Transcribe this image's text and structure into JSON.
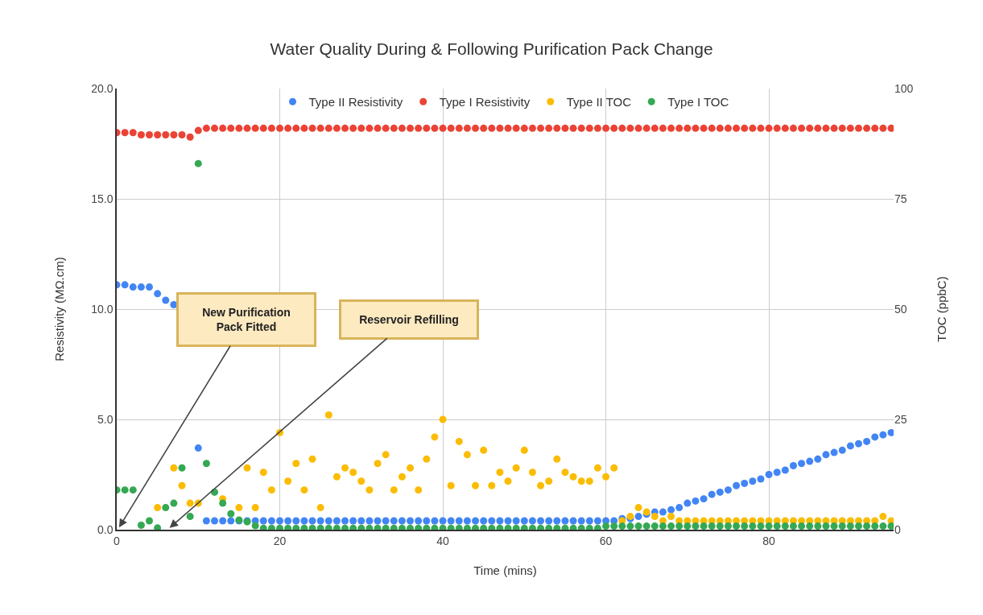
{
  "chart_data": {
    "type": "scatter",
    "title": "Water Quality During & Following Purification Pack Change",
    "xlabel": "Time (mins)",
    "ylabel": "Resistivity (MΩ.cm)",
    "y2label": "TOC (ppbC)",
    "x": [
      0,
      1,
      2,
      3,
      4,
      5,
      6,
      7,
      8,
      9,
      10,
      11,
      12,
      13,
      14,
      15,
      16,
      17,
      18,
      19,
      20,
      21,
      22,
      23,
      24,
      25,
      26,
      27,
      28,
      29,
      30,
      31,
      32,
      33,
      34,
      35,
      36,
      37,
      38,
      39,
      40,
      41,
      42,
      43,
      44,
      45,
      46,
      47,
      48,
      49,
      50,
      51,
      52,
      53,
      54,
      55,
      56,
      57,
      58,
      59,
      60,
      61,
      62,
      63,
      64,
      65,
      66,
      67,
      68,
      69,
      70,
      71,
      72,
      73,
      74,
      75,
      76,
      77,
      78,
      79,
      80,
      81,
      82,
      83,
      84,
      85,
      86,
      87,
      88,
      89,
      90,
      91,
      92,
      93,
      94,
      95
    ],
    "series": [
      {
        "name": "Type II Resistivity",
        "color": "#4285f4",
        "values": [
          11.1,
          11.1,
          11.0,
          11.0,
          11.0,
          10.7,
          10.4,
          10.2,
          null,
          null,
          3.7,
          0.4,
          0.4,
          0.4,
          0.4,
          0.4,
          0.4,
          0.4,
          0.4,
          0.4,
          0.4,
          0.4,
          0.4,
          0.4,
          0.4,
          0.4,
          0.4,
          0.4,
          0.4,
          0.4,
          0.4,
          0.4,
          0.4,
          0.4,
          0.4,
          0.4,
          0.4,
          0.4,
          0.4,
          0.4,
          0.4,
          0.4,
          0.4,
          0.4,
          0.4,
          0.4,
          0.4,
          0.4,
          0.4,
          0.4,
          0.4,
          0.4,
          0.4,
          0.4,
          0.4,
          0.4,
          0.4,
          0.4,
          0.4,
          0.4,
          0.4,
          0.4,
          0.5,
          0.5,
          0.6,
          0.7,
          0.8,
          0.8,
          0.9,
          1.0,
          1.2,
          1.3,
          1.4,
          1.6,
          1.7,
          1.8,
          2.0,
          2.1,
          2.2,
          2.3,
          2.5,
          2.6,
          2.7,
          2.9,
          3.0,
          3.1,
          3.2,
          3.4,
          3.5,
          3.6,
          3.8,
          3.9,
          4.0,
          4.2,
          4.3,
          4.4
        ]
      },
      {
        "name": "Type I Resistivity",
        "color": "#ea4335",
        "values": [
          18.0,
          18.0,
          18.0,
          17.9,
          17.9,
          17.9,
          17.9,
          17.9,
          17.9,
          17.8,
          18.1,
          18.2,
          18.2,
          18.2,
          18.2,
          18.2,
          18.2,
          18.2,
          18.2,
          18.2,
          18.2,
          18.2,
          18.2,
          18.2,
          18.2,
          18.2,
          18.2,
          18.2,
          18.2,
          18.2,
          18.2,
          18.2,
          18.2,
          18.2,
          18.2,
          18.2,
          18.2,
          18.2,
          18.2,
          18.2,
          18.2,
          18.2,
          18.2,
          18.2,
          18.2,
          18.2,
          18.2,
          18.2,
          18.2,
          18.2,
          18.2,
          18.2,
          18.2,
          18.2,
          18.2,
          18.2,
          18.2,
          18.2,
          18.2,
          18.2,
          18.2,
          18.2,
          18.2,
          18.2,
          18.2,
          18.2,
          18.2,
          18.2,
          18.2,
          18.2,
          18.2,
          18.2,
          18.2,
          18.2,
          18.2,
          18.2,
          18.2,
          18.2,
          18.2,
          18.2,
          18.2,
          18.2,
          18.2,
          18.2,
          18.2,
          18.2,
          18.2,
          18.2,
          18.2,
          18.2,
          18.2,
          18.2,
          18.2,
          18.2,
          18.2,
          18.2
        ]
      },
      {
        "name": "Type II TOC",
        "color": "#fbbc04",
        "axis": "y2",
        "values": [
          null,
          null,
          null,
          null,
          null,
          5,
          null,
          14,
          10,
          6,
          6,
          null,
          null,
          7,
          null,
          5,
          14,
          5,
          13,
          9,
          22,
          11,
          15,
          9,
          16,
          5,
          26,
          12,
          14,
          13,
          11,
          9,
          15,
          17,
          9,
          12,
          14,
          9,
          16,
          21,
          25,
          10,
          20,
          17,
          10,
          18,
          10,
          13,
          11,
          14,
          18,
          13,
          10,
          11,
          16,
          13,
          12,
          11,
          11,
          14,
          12,
          14,
          2,
          3,
          5,
          4,
          3,
          2,
          3,
          2,
          2,
          2,
          2,
          2,
          2,
          2,
          2,
          2,
          2,
          2,
          2,
          2,
          2,
          2,
          2,
          2,
          2,
          2,
          2,
          2,
          2,
          2,
          2,
          2,
          3,
          2
        ]
      },
      {
        "name": "Type I TOC",
        "color": "#34a853",
        "axis": "y2",
        "values": [
          9,
          9,
          9,
          1,
          2,
          0.4,
          5,
          6,
          14,
          3,
          83,
          15,
          8.5,
          6,
          3.6,
          2.2,
          1.8,
          0.9,
          0.3,
          0.3,
          0.3,
          0.3,
          0.3,
          0.3,
          0.3,
          0.3,
          0.3,
          0.3,
          0.3,
          0.3,
          0.3,
          0.3,
          0.3,
          0.3,
          0.3,
          0.3,
          0.3,
          0.3,
          0.3,
          0.3,
          0.3,
          0.3,
          0.3,
          0.3,
          0.3,
          0.3,
          0.3,
          0.3,
          0.3,
          0.3,
          0.3,
          0.3,
          0.3,
          0.3,
          0.3,
          0.3,
          0.3,
          0.3,
          0.3,
          0.3,
          0.8,
          0.8,
          0.8,
          0.8,
          0.8,
          0.8,
          0.8,
          0.8,
          0.8,
          0.8,
          0.8,
          0.8,
          0.8,
          0.8,
          0.8,
          0.8,
          0.8,
          0.8,
          0.8,
          0.8,
          0.8,
          0.8,
          0.8,
          0.8,
          0.8,
          0.8,
          0.8,
          0.8,
          0.8,
          0.8,
          0.8,
          0.8,
          0.8,
          0.8,
          0.8,
          0.8
        ]
      }
    ],
    "xlim": [
      0,
      95.3
    ],
    "xticks": [
      0,
      20,
      40,
      60,
      80
    ],
    "ylim": [
      0,
      20
    ],
    "yticks": [
      {
        "value": 0,
        "label": "0.0"
      },
      {
        "value": 5,
        "label": "5.0"
      },
      {
        "value": 10,
        "label": "10.0"
      },
      {
        "value": 15,
        "label": "15.0"
      },
      {
        "value": 20,
        "label": "20.0"
      }
    ],
    "y2lim": [
      0,
      100
    ],
    "y2ticks": [
      0,
      25,
      50,
      75,
      100
    ],
    "annotations": [
      "New Purification Pack Fitted",
      "Reservoir Refilling"
    ],
    "grid": true,
    "legend": "top",
    "marker": "circle"
  }
}
